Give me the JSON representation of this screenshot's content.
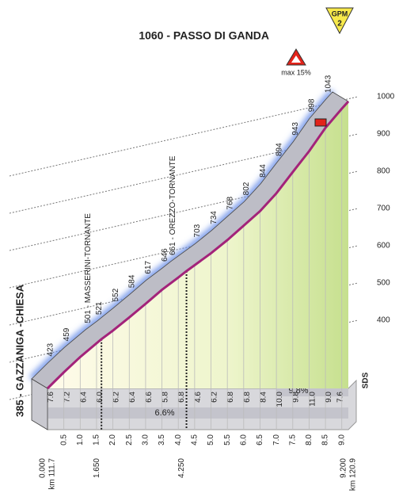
{
  "chart_data": {
    "type": "area",
    "x": [
      0,
      0.5,
      1,
      1.65,
      2,
      2.5,
      3,
      3.5,
      4,
      4.25,
      5,
      5.5,
      6,
      6.5,
      7,
      7.5,
      8,
      8.5,
      9,
      9.2
    ],
    "values": [
      385,
      423,
      459,
      501,
      521,
      552,
      584,
      617,
      646,
      661,
      703,
      734,
      768,
      802,
      844,
      894,
      943,
      998,
      1043,
      1060
    ],
    "value_labels": [
      "385 - GAZZANIGA -CHIESA",
      "423",
      "459",
      "501 - MASSERINI-TORNANTE",
      "521",
      "552",
      "584",
      "617",
      "646",
      "661 - OREZZO-TORNANTE",
      "703",
      "734",
      "768",
      "802",
      "844",
      "894",
      "943",
      "998",
      "1043",
      "1060 - PASSO DI GANDA"
    ],
    "color": "#a3237a",
    "xlim": [
      0,
      9.2
    ],
    "xticks": [
      0.5,
      {
        "value": 1,
        "label": "1.0"
      },
      1.5,
      {
        "value": 2,
        "label": "2.0"
      },
      2.5,
      {
        "value": 3,
        "label": "3.0"
      },
      3.5,
      {
        "value": 4,
        "label": "4.0"
      },
      4.5,
      {
        "value": 5,
        "label": "5.0"
      },
      5.5,
      {
        "value": 6,
        "label": "6.0"
      },
      6.5,
      {
        "value": 7,
        "label": "7.0"
      },
      7.5,
      {
        "value": 8,
        "label": "8.0"
      },
      8.5,
      {
        "value": 9,
        "label": "9.0"
      }
    ],
    "km_marks": [
      {
        "value": 0,
        "label": "0.000"
      },
      {
        "value": 1.65,
        "label": "1.650"
      },
      {
        "value": 4.25,
        "label": "4.250"
      },
      {
        "value": 9.2,
        "label": "9.200"
      }
    ],
    "km_totals": [
      "km 111.7",
      "km 120.9"
    ],
    "ylim": [
      385,
      1060
    ],
    "yticks": [
      400,
      500,
      600,
      700,
      800,
      900,
      1000
    ],
    "gradients": {
      "values": [
        7.6,
        7.2,
        6.4,
        6.0,
        6.2,
        6.4,
        6.6,
        5.8,
        6.8,
        4.6,
        6.2,
        6.8,
        6.8,
        8.4,
        10.0,
        9.8,
        11.0,
        9.0,
        7.6
      ],
      "value_labels": [
        "7.6",
        "7.2",
        "6.4",
        "6.0",
        "6.2",
        "6.4",
        "6.6",
        "5.8",
        "6.8",
        "4.6",
        "6.2",
        "6.8",
        "6.8",
        "8.4",
        "10.0",
        "9.8",
        "11.0",
        "9.0",
        "7.6"
      ]
    },
    "average_gradients": {
      "values": [
        6.6,
        9.8
      ],
      "value_labels": [
        "6.6%",
        "9.8%"
      ]
    },
    "gpm": {
      "label": "GPM",
      "category": "2"
    },
    "max_gradient": "max 15%",
    "sds": "SDS"
  }
}
